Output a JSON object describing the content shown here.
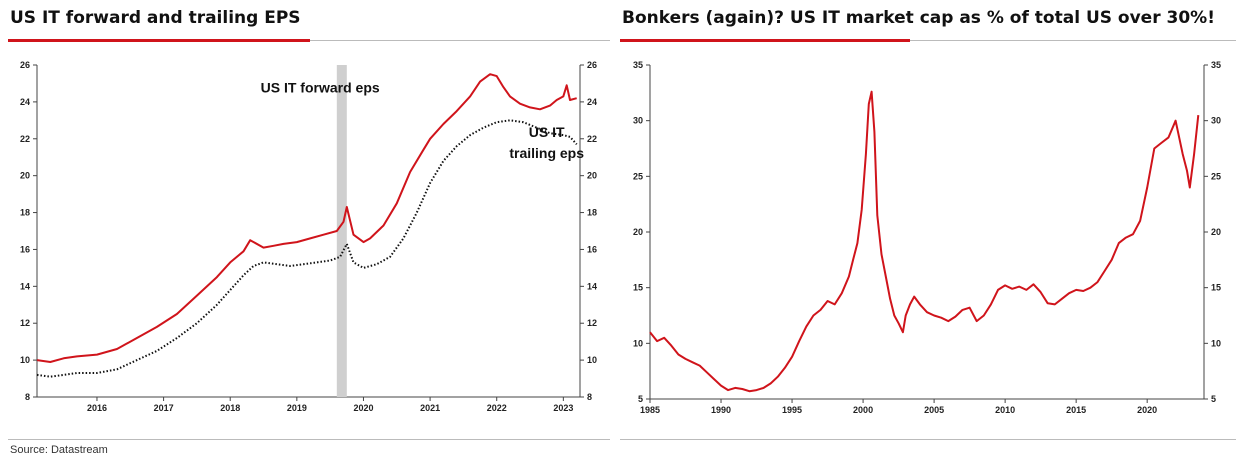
{
  "titles": {
    "left": "US IT forward and trailing EPS",
    "right": "Bonkers (again)? US IT market cap as % of total US over 30%!"
  },
  "source": "Source: Datastream",
  "colors": {
    "accent": "#d0141b",
    "dotted": "#111111",
    "shade": "#cfcfcf"
  },
  "chart_data": [
    {
      "type": "line",
      "title": "US IT forward and trailing EPS",
      "xlim": [
        2015.1,
        2023.25
      ],
      "ylim": [
        8,
        26
      ],
      "xticks": [
        "2016",
        "2017",
        "2018",
        "2019",
        "2020",
        "2021",
        "2022",
        "2023"
      ],
      "yticks": [
        "8",
        "10",
        "12",
        "14",
        "16",
        "18",
        "20",
        "22",
        "24",
        "26"
      ],
      "dual_y_axis": true,
      "shaded_period": [
        2019.6,
        2019.75
      ],
      "annotations": [
        {
          "lines": [
            "US IT forward eps"
          ],
          "x": 2019.35,
          "y": 24.5,
          "anchor": "middle"
        },
        {
          "lines": [
            "US IT",
            "trailing eps"
          ],
          "x": 2022.75,
          "y": 22.1,
          "anchor": "middle"
        }
      ],
      "series": [
        {
          "name": "US IT forward eps",
          "style": "solid",
          "x": [
            2015.1,
            2015.3,
            2015.5,
            2015.7,
            2016.0,
            2016.3,
            2016.6,
            2016.9,
            2017.2,
            2017.5,
            2017.8,
            2018.0,
            2018.2,
            2018.3,
            2018.5,
            2018.65,
            2018.8,
            2019.0,
            2019.2,
            2019.4,
            2019.6,
            2019.7,
            2019.75,
            2019.85,
            2020.0,
            2020.1,
            2020.3,
            2020.5,
            2020.7,
            2020.9,
            2021.0,
            2021.2,
            2021.4,
            2021.6,
            2021.75,
            2021.9,
            2022.0,
            2022.1,
            2022.2,
            2022.35,
            2022.5,
            2022.65,
            2022.8,
            2022.9,
            2023.0,
            2023.05,
            2023.1,
            2023.2
          ],
          "y": [
            10.0,
            9.9,
            10.1,
            10.2,
            10.3,
            10.6,
            11.2,
            11.8,
            12.5,
            13.5,
            14.5,
            15.3,
            15.9,
            16.5,
            16.1,
            16.2,
            16.3,
            16.4,
            16.6,
            16.8,
            17.0,
            17.5,
            18.3,
            16.8,
            16.4,
            16.6,
            17.3,
            18.5,
            20.2,
            21.4,
            22.0,
            22.8,
            23.5,
            24.3,
            25.1,
            25.5,
            25.4,
            24.8,
            24.3,
            23.9,
            23.7,
            23.6,
            23.8,
            24.1,
            24.3,
            24.9,
            24.1,
            24.2
          ]
        },
        {
          "name": "US IT trailing eps",
          "style": "dotted",
          "x": [
            2015.1,
            2015.3,
            2015.5,
            2015.7,
            2016.0,
            2016.3,
            2016.6,
            2016.9,
            2017.2,
            2017.5,
            2017.8,
            2018.0,
            2018.2,
            2018.35,
            2018.5,
            2018.7,
            2018.9,
            2019.1,
            2019.3,
            2019.5,
            2019.65,
            2019.75,
            2019.85,
            2020.0,
            2020.2,
            2020.4,
            2020.6,
            2020.8,
            2021.0,
            2021.2,
            2021.4,
            2021.6,
            2021.8,
            2022.0,
            2022.2,
            2022.4,
            2022.6,
            2022.8,
            2023.0,
            2023.1,
            2023.2
          ],
          "y": [
            9.2,
            9.1,
            9.2,
            9.3,
            9.3,
            9.5,
            10.0,
            10.5,
            11.2,
            12.0,
            13.0,
            13.8,
            14.6,
            15.1,
            15.3,
            15.2,
            15.1,
            15.2,
            15.3,
            15.4,
            15.6,
            16.3,
            15.3,
            15.0,
            15.2,
            15.6,
            16.6,
            18.0,
            19.6,
            20.8,
            21.6,
            22.2,
            22.6,
            22.9,
            23.0,
            22.9,
            22.6,
            22.3,
            22.2,
            22.1,
            21.7
          ]
        }
      ]
    },
    {
      "type": "line",
      "title": "Bonkers (again)? US IT market cap as % of total US over 30%!",
      "xlim": [
        1985,
        2024
      ],
      "ylim": [
        5,
        35
      ],
      "xticks": [
        "1985",
        "1990",
        "1995",
        "2000",
        "2005",
        "2010",
        "2015",
        "2020"
      ],
      "yticks": [
        "5",
        "10",
        "15",
        "20",
        "25",
        "30",
        "35"
      ],
      "dual_y_axis": true,
      "series": [
        {
          "name": "",
          "style": "solid",
          "x": [
            1985.0,
            1985.5,
            1986.0,
            1986.5,
            1987.0,
            1987.5,
            1988.0,
            1988.5,
            1989.0,
            1989.5,
            1990.0,
            1990.5,
            1991.0,
            1991.5,
            1992.0,
            1992.5,
            1993.0,
            1993.5,
            1994.0,
            1994.5,
            1995.0,
            1995.5,
            1996.0,
            1996.5,
            1997.0,
            1997.5,
            1998.0,
            1998.5,
            1999.0,
            1999.3,
            1999.6,
            1999.9,
            2000.2,
            2000.4,
            2000.6,
            2000.8,
            2001.0,
            2001.3,
            2001.6,
            2001.9,
            2002.2,
            2002.5,
            2002.8,
            2003.0,
            2003.3,
            2003.6,
            2004.0,
            2004.5,
            2005.0,
            2005.5,
            2006.0,
            2006.5,
            2007.0,
            2007.5,
            2008.0,
            2008.5,
            2009.0,
            2009.5,
            2010.0,
            2010.5,
            2011.0,
            2011.5,
            2012.0,
            2012.5,
            2013.0,
            2013.5,
            2014.0,
            2014.5,
            2015.0,
            2015.5,
            2016.0,
            2016.5,
            2017.0,
            2017.5,
            2018.0,
            2018.5,
            2019.0,
            2019.5,
            2020.0,
            2020.5,
            2021.0,
            2021.5,
            2022.0,
            2022.5,
            2022.8,
            2023.0,
            2023.3,
            2023.6
          ],
          "y": [
            11.0,
            10.2,
            10.5,
            9.8,
            9.0,
            8.6,
            8.3,
            8.0,
            7.4,
            6.8,
            6.2,
            5.8,
            6.0,
            5.9,
            5.7,
            5.8,
            6.0,
            6.4,
            7.0,
            7.8,
            8.8,
            10.2,
            11.5,
            12.5,
            13.0,
            13.8,
            13.5,
            14.5,
            16.0,
            17.5,
            19.0,
            22.0,
            27.0,
            31.5,
            32.6,
            29.0,
            21.5,
            18.0,
            16.0,
            14.0,
            12.5,
            11.8,
            11.0,
            12.5,
            13.5,
            14.2,
            13.5,
            12.8,
            12.5,
            12.3,
            12.0,
            12.4,
            13.0,
            13.2,
            12.0,
            12.5,
            13.5,
            14.8,
            15.2,
            14.9,
            15.1,
            14.8,
            15.3,
            14.6,
            13.6,
            13.5,
            14.0,
            14.5,
            14.8,
            14.7,
            15.0,
            15.5,
            16.5,
            17.5,
            19.0,
            19.5,
            19.8,
            21.0,
            24.0,
            27.5,
            28.0,
            28.5,
            30.0,
            27.0,
            25.5,
            24.0,
            27.0,
            30.5
          ]
        }
      ]
    }
  ]
}
